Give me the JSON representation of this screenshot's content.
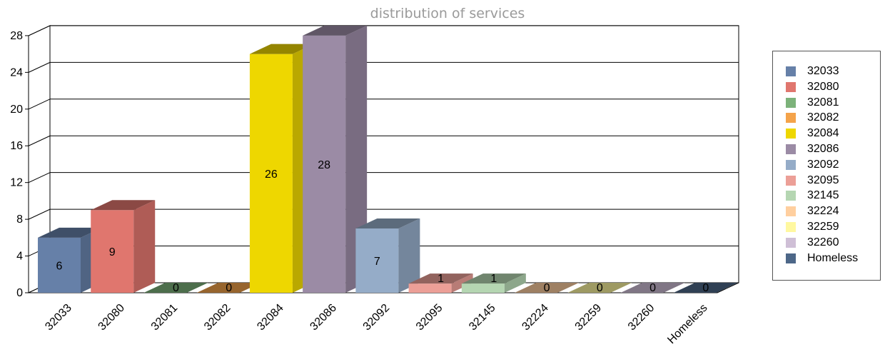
{
  "chart_data": {
    "type": "bar",
    "title": "distribution of services",
    "categories": [
      "32033",
      "32080",
      "32081",
      "32082",
      "32084",
      "32086",
      "32092",
      "32095",
      "32145",
      "32224",
      "32259",
      "32260",
      "Homeless"
    ],
    "values": [
      6,
      9,
      0,
      0,
      26,
      28,
      7,
      1,
      1,
      0,
      0,
      0,
      0
    ],
    "colors": [
      "#6680a8",
      "#e0766e",
      "#7cb27a",
      "#f4a34a",
      "#eed700",
      "#9b8ba5",
      "#95acc8",
      "#ec9f97",
      "#b5d6b2",
      "#ffcf9f",
      "#fff8a0",
      "#cfbfd6",
      "#4d6788"
    ],
    "yticks": [
      "0",
      "4",
      "8",
      "12",
      "16",
      "20",
      "24",
      "28"
    ],
    "ylim": [
      0,
      28
    ],
    "grid": true,
    "legend": "right"
  }
}
